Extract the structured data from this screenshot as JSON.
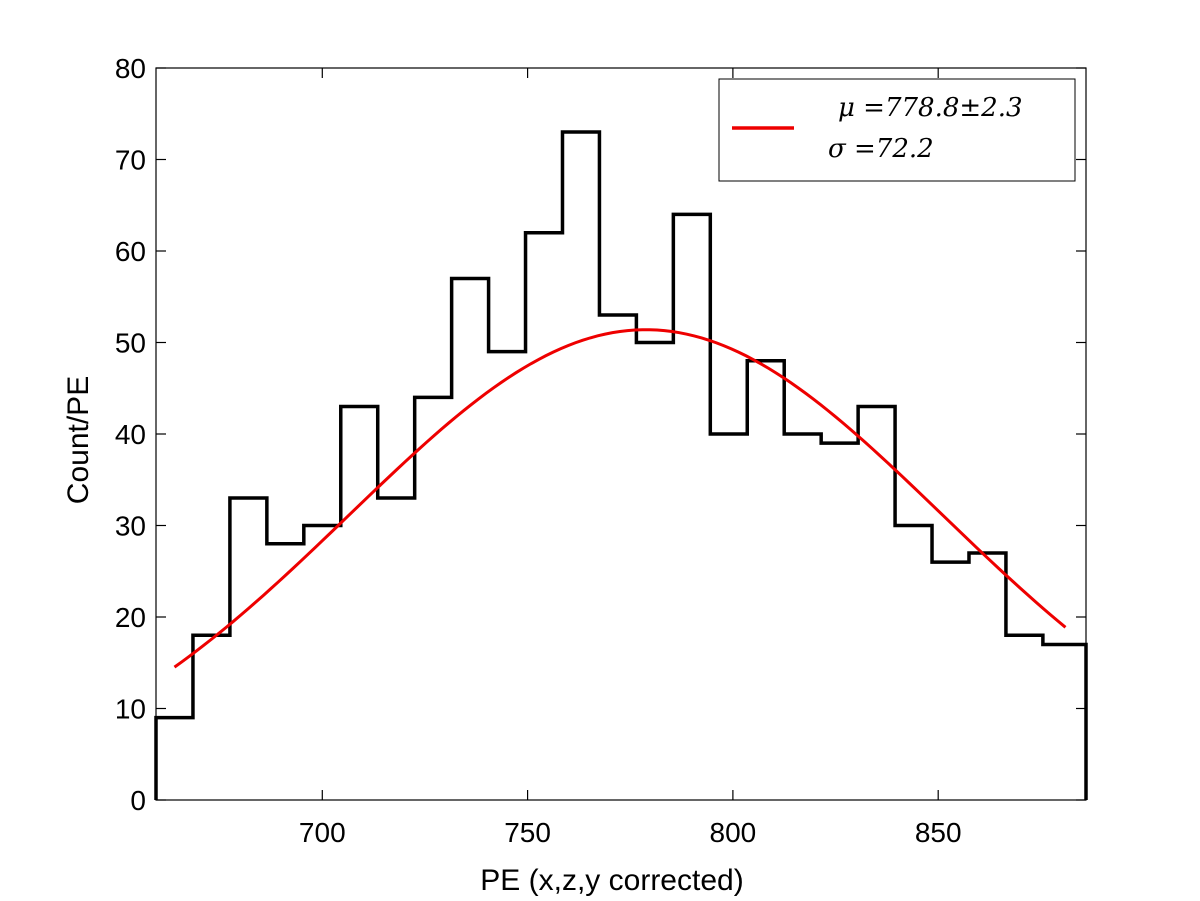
{
  "chart_data": {
    "type": "histogram",
    "xlabel": "PE (x,z,y corrected)",
    "ylabel": "Count/PE",
    "xlim": [
      659.5,
      886
    ],
    "ylim": [
      0,
      80
    ],
    "xticks": [
      700,
      750,
      800,
      850
    ],
    "yticks": [
      0,
      10,
      20,
      30,
      40,
      50,
      60,
      70,
      80
    ],
    "grid": false,
    "bin_edges": [
      659.5,
      668.5,
      677.5,
      686.5,
      695.5,
      704.5,
      713.5,
      722.5,
      731.5,
      740.5,
      749.5,
      758.5,
      767.5,
      776.5,
      785.5,
      794.5,
      803.5,
      812.5,
      821.5,
      830.5,
      839.5,
      848.5,
      857.5,
      866.5,
      875.5,
      886
    ],
    "counts": [
      9,
      18,
      33,
      28,
      30,
      43,
      33,
      44,
      57,
      49,
      62,
      73,
      53,
      50,
      64,
      40,
      48,
      40,
      39,
      43,
      30,
      26,
      27,
      18,
      17
    ],
    "fit": {
      "type": "gaussian",
      "mu": 778.8,
      "sigma": 72.2,
      "amplitude": 51.4,
      "x_range": [
        664,
        881
      ],
      "color": "#ee0000"
    },
    "legend": {
      "placement": "top-right",
      "entries": [
        {
          "text_line1": "μ =778.8±2.3",
          "text_line2": "σ =72.2",
          "color": "#ee0000"
        }
      ]
    }
  }
}
